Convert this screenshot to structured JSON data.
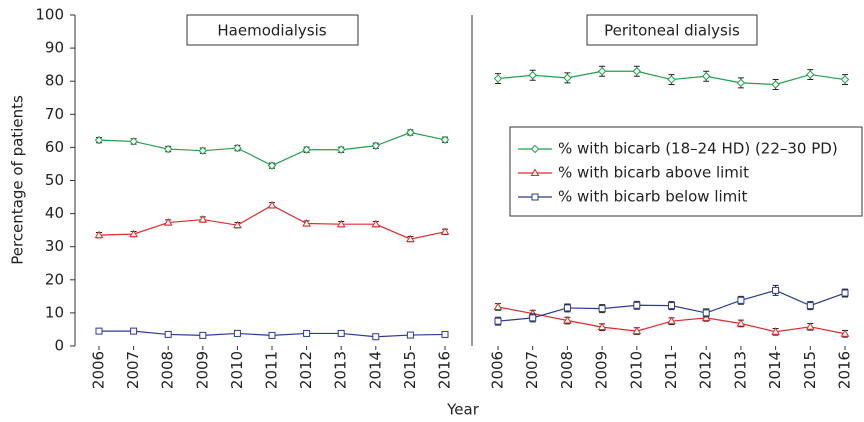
{
  "chart_data": [
    {
      "type": "line",
      "title": "Haemodialysis",
      "y_label": "Percentage of patients",
      "x_label": "Year",
      "categories": [
        "2006",
        "2007",
        "2008",
        "2009",
        "2010",
        "2011",
        "2012",
        "2013",
        "2014",
        "2015",
        "2016"
      ],
      "ylim": [
        0,
        100
      ],
      "yticks": [
        0,
        10,
        20,
        30,
        40,
        50,
        60,
        70,
        80,
        90,
        100
      ],
      "series": [
        {
          "color": "#21a04a",
          "marker": "diamond",
          "values": [
            62.2,
            61.8,
            59.5,
            59,
            59.8,
            54.5,
            59.3,
            59.3,
            60.5,
            64.5,
            62.3
          ],
          "errors": [
            0.8,
            0.8,
            0.8,
            0.8,
            0.8,
            0.8,
            0.8,
            0.8,
            0.8,
            0.8,
            0.8
          ]
        },
        {
          "color": "#e02b2b",
          "marker": "triangle",
          "values": [
            33.5,
            33.8,
            37.3,
            38.2,
            36.5,
            42.5,
            37,
            36.8,
            36.8,
            32.3,
            34.5
          ],
          "errors": [
            0.8,
            0.8,
            0.8,
            0.8,
            0.8,
            0.8,
            0.8,
            0.8,
            0.8,
            0.8,
            0.8
          ]
        },
        {
          "color": "#2b3a92",
          "marker": "square",
          "values": [
            4.5,
            4.5,
            3.5,
            3.2,
            3.8,
            3.2,
            3.8,
            3.8,
            2.8,
            3.3,
            3.5
          ],
          "errors": [
            0.4,
            0.4,
            0.4,
            0.4,
            0.4,
            0.4,
            0.4,
            0.4,
            0.4,
            0.4,
            0.4
          ]
        }
      ]
    },
    {
      "type": "line",
      "title": "Peritoneal dialysis",
      "categories": [
        "2006",
        "2007",
        "2008",
        "2009",
        "2010",
        "2011",
        "2012",
        "2013",
        "2014",
        "2015",
        "2016"
      ],
      "ylim": [
        0,
        100
      ],
      "series": [
        {
          "name": "% with bicarb (18–24 HD) (22–30 PD)",
          "color": "#21a04a",
          "marker": "diamond",
          "values": [
            80.8,
            81.8,
            81,
            83,
            83,
            80.5,
            81.5,
            79.5,
            79,
            82,
            80.5
          ],
          "errors": [
            1.5,
            1.5,
            1.5,
            1.5,
            1.5,
            1.5,
            1.5,
            1.5,
            1.5,
            1.5,
            1.5
          ]
        },
        {
          "name": "% with bicarb above limit",
          "color": "#e02b2b",
          "marker": "triangle",
          "values": [
            11.8,
            9.8,
            7.7,
            5.7,
            4.5,
            7.5,
            8.5,
            6.8,
            4.3,
            5.8,
            3.7
          ],
          "errors": [
            1,
            1,
            1,
            1,
            1,
            1,
            1,
            1,
            1,
            1,
            1
          ]
        },
        {
          "name": "% with bicarb below limit",
          "color": "#2b3a92",
          "marker": "square",
          "values": [
            7.5,
            8.5,
            11.5,
            11.3,
            12.3,
            12.2,
            10,
            13.8,
            16.8,
            12.2,
            16
          ],
          "errors": [
            1.2,
            1.2,
            1.2,
            1.2,
            1.2,
            1.2,
            1.2,
            1.2,
            1.5,
            1.2,
            1.2
          ]
        }
      ]
    }
  ]
}
